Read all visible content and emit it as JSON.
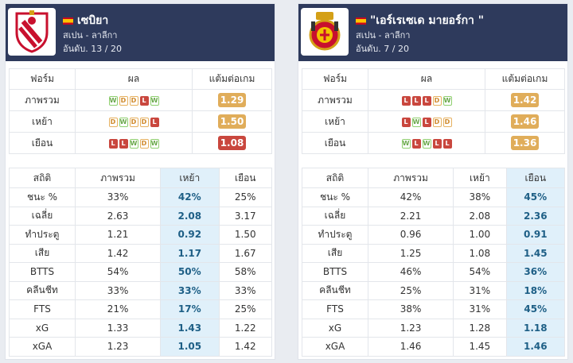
{
  "teams": [
    {
      "name": "เซบิยา",
      "country_league": "สเปน - ลาลีกา",
      "rank": "อันดับ. 13 / 20",
      "logo_icon": "sevilla-crest-icon",
      "form_headers": [
        "ฟอร์ม",
        "ผล",
        "แต้มต่อเกม"
      ],
      "form_rows": [
        {
          "label": "ภาพรวม",
          "results": [
            "W",
            "D",
            "D",
            "L",
            "W"
          ],
          "ppg": "1.29",
          "ppg_level": "mid"
        },
        {
          "label": "เหย้า",
          "results": [
            "D",
            "W",
            "D",
            "D",
            "L"
          ],
          "ppg": "1.50",
          "ppg_level": "mid"
        },
        {
          "label": "เยือน",
          "results": [
            "L",
            "L",
            "W",
            "D",
            "W"
          ],
          "ppg": "1.08",
          "ppg_level": "low"
        }
      ],
      "stats_headers": [
        "สถิติ",
        "ภาพรวม",
        "เหย้า",
        "เยือน"
      ],
      "highlight_col": 2,
      "stats_rows": [
        [
          "ชนะ %",
          "33%",
          "42%",
          "25%"
        ],
        [
          "เฉลี่ย",
          "2.63",
          "2.08",
          "3.17"
        ],
        [
          "ทำประตู",
          "1.21",
          "0.92",
          "1.50"
        ],
        [
          "เสีย",
          "1.42",
          "1.17",
          "1.67"
        ],
        [
          "BTTS",
          "54%",
          "50%",
          "58%"
        ],
        [
          "คลีนชีท",
          "33%",
          "33%",
          "33%"
        ],
        [
          "FTS",
          "21%",
          "17%",
          "25%"
        ],
        [
          "xG",
          "1.33",
          "1.43",
          "1.22"
        ],
        [
          "xGA",
          "1.23",
          "1.05",
          "1.42"
        ]
      ]
    },
    {
      "name": "\"เอร์เรเซเด มายอร์กา \"",
      "country_league": "สเปน - ลาลีกา",
      "rank": "อันดับ. 7 / 20",
      "logo_icon": "mallorca-crest-icon",
      "form_headers": [
        "ฟอร์ม",
        "ผล",
        "แต้มต่อเกม"
      ],
      "form_rows": [
        {
          "label": "ภาพรวม",
          "results": [
            "L",
            "L",
            "L",
            "D",
            "W"
          ],
          "ppg": "1.42",
          "ppg_level": "mid"
        },
        {
          "label": "เหย้า",
          "results": [
            "L",
            "W",
            "L",
            "D",
            "D"
          ],
          "ppg": "1.46",
          "ppg_level": "mid"
        },
        {
          "label": "เยือน",
          "results": [
            "W",
            "L",
            "W",
            "L",
            "L"
          ],
          "ppg": "1.36",
          "ppg_level": "mid"
        }
      ],
      "stats_headers": [
        "สถิติ",
        "ภาพรวม",
        "เหย้า",
        "เยือน"
      ],
      "highlight_col": 3,
      "stats_rows": [
        [
          "ชนะ %",
          "42%",
          "38%",
          "45%"
        ],
        [
          "เฉลี่ย",
          "2.21",
          "2.08",
          "2.36"
        ],
        [
          "ทำประตู",
          "0.96",
          "1.00",
          "0.91"
        ],
        [
          "เสีย",
          "1.25",
          "1.08",
          "1.45"
        ],
        [
          "BTTS",
          "46%",
          "54%",
          "36%"
        ],
        [
          "คลีนชีท",
          "25%",
          "31%",
          "18%"
        ],
        [
          "FTS",
          "38%",
          "31%",
          "45%"
        ],
        [
          "xG",
          "1.23",
          "1.28",
          "1.18"
        ],
        [
          "xGA",
          "1.46",
          "1.45",
          "1.46"
        ]
      ]
    }
  ],
  "colors": {
    "header_bg": "#2e3a5c",
    "highlight_bg": "#e0f0fa",
    "highlight_text": "#1e5f86",
    "win": "#8fcf6f",
    "draw": "#e6b160",
    "loss": "#c9473e",
    "ppg_mid": "#e0ad5a",
    "ppg_low": "#c9473e"
  }
}
